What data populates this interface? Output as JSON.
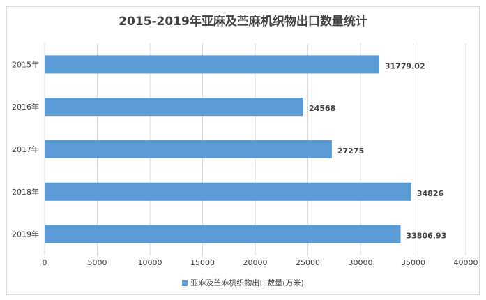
{
  "chart_data": {
    "type": "bar",
    "orientation": "horizontal",
    "title": "2015-2019年亚麻及苎麻机织物出口数量统计",
    "categories": [
      "2015年",
      "2016年",
      "2017年",
      "2018年",
      "2019年"
    ],
    "series": [
      {
        "name": "亚麻及苎麻机织物出口数量(万米)",
        "values": [
          31779.02,
          24568,
          27275,
          34826,
          33806.93
        ],
        "labels": [
          "31779.02",
          "24568",
          "27275",
          "34826",
          "33806.93"
        ]
      }
    ],
    "xlim": [
      0,
      40000
    ],
    "xticks": [
      "0",
      "5000",
      "10000",
      "15000",
      "20000",
      "25000",
      "30000",
      "35000",
      "40000"
    ],
    "grid": true,
    "legend": "bottom",
    "color": "#5b9bd5"
  }
}
